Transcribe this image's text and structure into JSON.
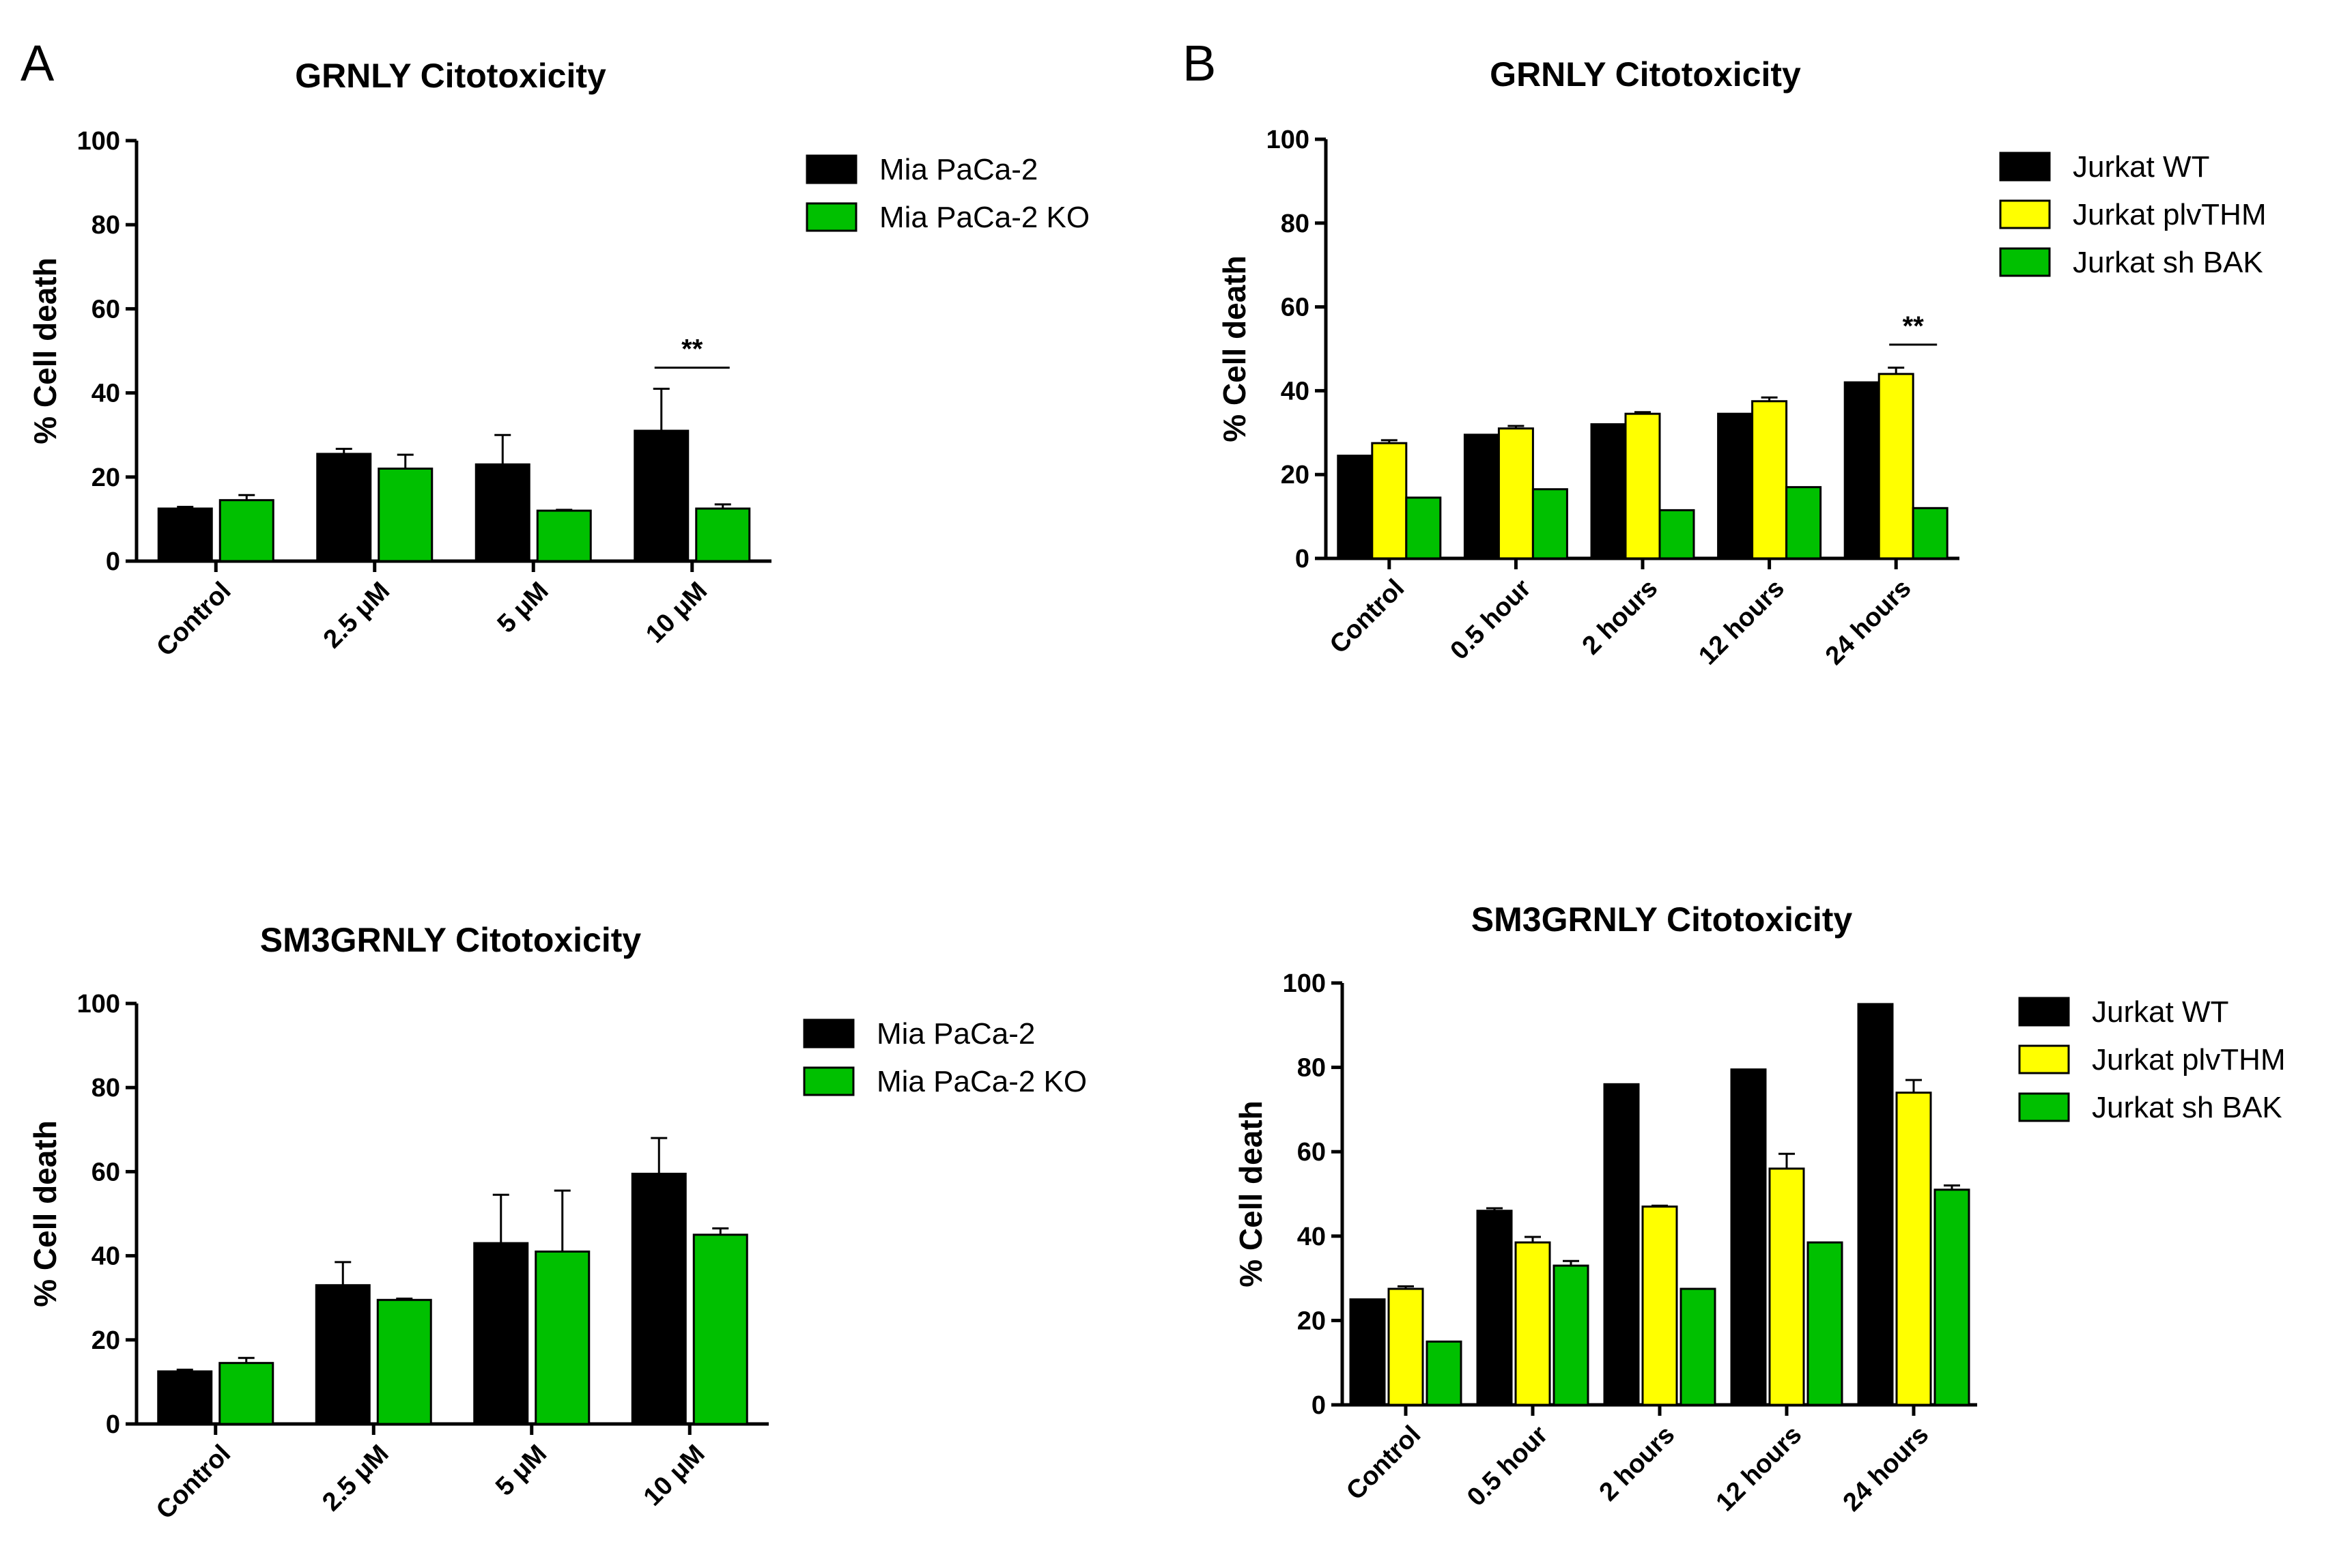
{
  "colors": {
    "black": "#000000",
    "green": "#00c000",
    "yellow": "#ffff00",
    "axis": "#000000"
  },
  "panel_letters": [
    "A",
    "B"
  ],
  "chart_data": [
    {
      "id": "A-top",
      "panel": "A",
      "type": "bar",
      "title": "GRNLY Citotoxicity",
      "xlabel": "",
      "ylabel": "% Cell death",
      "ylim": [
        0,
        100
      ],
      "yticks": [
        0,
        20,
        40,
        60,
        80,
        100
      ],
      "categories": [
        "Control",
        "2.5 μM",
        "5 μM",
        "10 μM"
      ],
      "series": [
        {
          "name": "Mia PaCa-2",
          "color": "#000000",
          "values": [
            12.5,
            25.5,
            23,
            31
          ],
          "errors": [
            0.4,
            1.2,
            7,
            10
          ]
        },
        {
          "name": "Mia PaCa-2 KO",
          "color": "#00c000",
          "values": [
            14.5,
            22,
            12,
            12.5
          ],
          "errors": [
            1.2,
            3.3,
            0.2,
            1.0
          ]
        }
      ],
      "significance": [
        {
          "label": "**",
          "category_index": 3,
          "level": 46
        }
      ]
    },
    {
      "id": "B-top",
      "panel": "B",
      "type": "bar",
      "title": "GRNLY Citotoxicity",
      "xlabel": "",
      "ylabel": "% Cell death",
      "ylim": [
        0,
        100
      ],
      "yticks": [
        0,
        20,
        40,
        60,
        80,
        100
      ],
      "categories": [
        "Control",
        "0.5 hour",
        "2 hours",
        "12 hours",
        "24 hours"
      ],
      "series": [
        {
          "name": "Jurkat WT",
          "color": "#000000",
          "values": [
            24.5,
            29.5,
            32,
            34.5,
            42
          ],
          "errors": [
            0,
            0,
            0,
            0,
            0
          ]
        },
        {
          "name": "Jurkat plvTHM",
          "color": "#ffff00",
          "values": [
            27.5,
            31,
            34.5,
            37.5,
            44
          ],
          "errors": [
            0.7,
            0.6,
            0.4,
            0.9,
            1.5
          ]
        },
        {
          "name": "Jurkat sh BAK",
          "color": "#00c000",
          "values": [
            14.5,
            16.5,
            11.5,
            17,
            12
          ],
          "errors": [
            0,
            0,
            0,
            0,
            0
          ]
        }
      ],
      "significance": [
        {
          "label": "**",
          "category_index": 4,
          "level": 51
        }
      ]
    },
    {
      "id": "A-bottom",
      "panel": "A",
      "type": "bar",
      "title": "SM3GRNLY Citotoxicity",
      "xlabel": "",
      "ylabel": "% Cell death",
      "ylim": [
        0,
        100
      ],
      "yticks": [
        0,
        20,
        40,
        60,
        80,
        100
      ],
      "categories": [
        "Control",
        "2.5 μM",
        "5 μM",
        "10 μM"
      ],
      "series": [
        {
          "name": "Mia PaCa-2",
          "color": "#000000",
          "values": [
            12.5,
            33,
            43,
            59.5
          ],
          "errors": [
            0.4,
            5.5,
            11.5,
            8.5
          ]
        },
        {
          "name": "Mia PaCa-2 KO",
          "color": "#00c000",
          "values": [
            14.5,
            29.5,
            41,
            45
          ],
          "errors": [
            1.2,
            0.3,
            14.5,
            1.5
          ]
        }
      ],
      "significance": []
    },
    {
      "id": "B-bottom",
      "panel": "B",
      "type": "bar",
      "title": "SM3GRNLY Citotoxicity",
      "xlabel": "",
      "ylabel": "% Cell death",
      "ylim": [
        0,
        100
      ],
      "yticks": [
        0,
        20,
        40,
        60,
        80,
        100
      ],
      "categories": [
        "Control",
        "0.5 hour",
        "2 hours",
        "12 hours",
        "24 hours"
      ],
      "series": [
        {
          "name": "Jurkat WT",
          "color": "#000000",
          "values": [
            25,
            46,
            76,
            79.5,
            95
          ],
          "errors": [
            0,
            0.6,
            0,
            0,
            0
          ]
        },
        {
          "name": "Jurkat plvTHM",
          "color": "#ffff00",
          "values": [
            27.5,
            38.5,
            47,
            56,
            74
          ],
          "errors": [
            0.6,
            1.3,
            0.2,
            3.5,
            3
          ]
        },
        {
          "name": "Jurkat sh BAK",
          "color": "#00c000",
          "values": [
            15,
            33,
            27.5,
            38.5,
            51
          ],
          "errors": [
            0,
            1.1,
            0,
            0,
            1
          ]
        }
      ],
      "significance": []
    }
  ]
}
